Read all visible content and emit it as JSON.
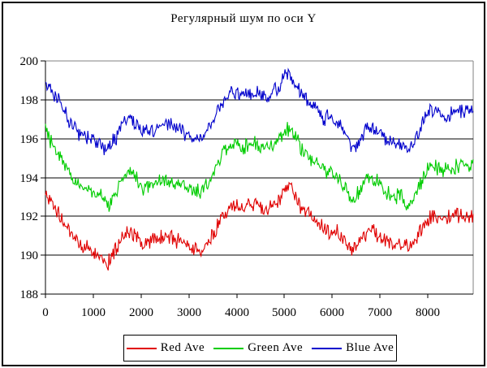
{
  "chart_data": {
    "type": "line",
    "title": "Регулярный шум по оси Y",
    "xlabel": "",
    "ylabel": "",
    "x_range": [
      0,
      8950
    ],
    "ylim": [
      188,
      200
    ],
    "x_ticks": [
      0,
      1000,
      2000,
      3000,
      4000,
      5000,
      6000,
      7000,
      8000
    ],
    "y_ticks": [
      188,
      190,
      192,
      194,
      196,
      198,
      200
    ],
    "grid": "horizontal-black, plot frame gray",
    "legend_position": "bottom",
    "noise_amplitude": 0.25,
    "x_keypoints": [
      0,
      150,
      300,
      450,
      600,
      800,
      1000,
      1150,
      1300,
      1450,
      1600,
      1750,
      1900,
      2050,
      2200,
      2350,
      2500,
      2650,
      2800,
      2950,
      3100,
      3250,
      3400,
      3550,
      3700,
      3850,
      4000,
      4150,
      4300,
      4450,
      4600,
      4750,
      4900,
      5000,
      5100,
      5200,
      5350,
      5500,
      5650,
      5800,
      5950,
      6100,
      6250,
      6400,
      6550,
      6700,
      6850,
      7000,
      7150,
      7300,
      7450,
      7600,
      7750,
      7900,
      8050,
      8200,
      8350,
      8500,
      8650,
      8800,
      8950
    ],
    "series": [
      {
        "name": "Red Ave",
        "color": "#e00000",
        "values": [
          193.2,
          192.6,
          192.0,
          191.4,
          190.85,
          190.4,
          190.2,
          189.95,
          189.6,
          190.1,
          190.8,
          191.2,
          190.95,
          190.6,
          190.7,
          190.8,
          191.0,
          190.85,
          190.7,
          190.45,
          190.3,
          190.25,
          190.7,
          191.3,
          192.1,
          192.5,
          192.65,
          192.5,
          192.6,
          192.55,
          192.35,
          192.55,
          193.0,
          193.3,
          193.55,
          193.1,
          192.5,
          192.15,
          191.8,
          191.5,
          191.3,
          191.2,
          190.8,
          190.3,
          190.6,
          191.1,
          191.3,
          191.0,
          190.7,
          190.6,
          190.55,
          190.35,
          190.8,
          191.5,
          192.1,
          191.9,
          191.85,
          192.0,
          192.05,
          192.0,
          192.0
        ]
      },
      {
        "name": "Green Ave",
        "color": "#00cc00",
        "values": [
          196.3,
          195.7,
          195.05,
          194.4,
          193.85,
          193.4,
          193.2,
          192.95,
          192.6,
          193.15,
          193.85,
          194.35,
          193.95,
          193.55,
          193.7,
          193.8,
          194.0,
          193.85,
          193.7,
          193.45,
          193.3,
          193.25,
          193.7,
          194.35,
          195.15,
          195.6,
          195.75,
          195.6,
          195.7,
          195.65,
          195.45,
          195.65,
          196.05,
          196.35,
          196.55,
          196.15,
          195.5,
          195.15,
          194.75,
          194.4,
          194.2,
          194.05,
          193.55,
          192.85,
          193.15,
          193.9,
          194.0,
          193.6,
          193.25,
          193.05,
          192.95,
          192.4,
          193.1,
          194.0,
          194.65,
          194.45,
          194.35,
          194.5,
          194.6,
          194.6,
          194.7
        ]
      },
      {
        "name": "Blue Ave",
        "color": "#0000cc",
        "values": [
          198.9,
          198.35,
          197.8,
          197.15,
          196.6,
          196.15,
          195.95,
          195.7,
          195.5,
          195.95,
          196.6,
          197.1,
          196.7,
          196.3,
          196.45,
          196.55,
          196.75,
          196.6,
          196.45,
          196.2,
          196.05,
          196.0,
          196.45,
          197.1,
          197.9,
          198.3,
          198.4,
          198.25,
          198.35,
          198.3,
          198.1,
          198.3,
          198.8,
          199.2,
          199.4,
          198.9,
          198.25,
          197.9,
          197.5,
          197.15,
          196.95,
          196.8,
          196.3,
          195.6,
          195.9,
          196.4,
          196.55,
          196.2,
          195.9,
          195.8,
          195.7,
          195.25,
          195.9,
          196.8,
          197.5,
          197.2,
          197.1,
          197.3,
          197.4,
          197.35,
          197.5
        ]
      }
    ],
    "frame_color": "#808080",
    "axis_color": "#000000"
  }
}
